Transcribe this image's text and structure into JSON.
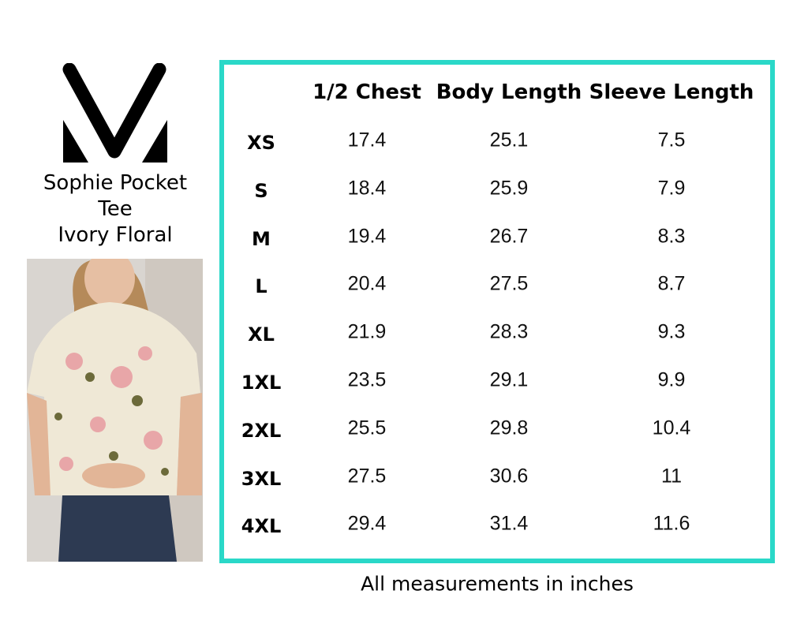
{
  "product": {
    "title_lines": [
      "Sophie Pocket",
      "Tee",
      "Ivory Floral"
    ]
  },
  "colors": {
    "frame": "#2ad8c8",
    "text": "#000000"
  },
  "table": {
    "columns": [
      "1/2 Chest",
      "Body Length",
      "Sleeve Length"
    ],
    "rows": [
      {
        "size": "XS",
        "values": [
          "17.4",
          "25.1",
          "7.5"
        ]
      },
      {
        "size": "S",
        "values": [
          "18.4",
          "25.9",
          "7.9"
        ]
      },
      {
        "size": "M",
        "values": [
          "19.4",
          "26.7",
          "8.3"
        ]
      },
      {
        "size": "L",
        "values": [
          "20.4",
          "27.5",
          "8.7"
        ]
      },
      {
        "size": "XL",
        "values": [
          "21.9",
          "28.3",
          "9.3"
        ]
      },
      {
        "size": "1XL",
        "values": [
          "23.5",
          "29.1",
          "9.9"
        ]
      },
      {
        "size": "2XL",
        "values": [
          "25.5",
          "29.8",
          "10.4"
        ]
      },
      {
        "size": "3XL",
        "values": [
          "27.5",
          "30.6",
          "11"
        ]
      },
      {
        "size": "4XL",
        "values": [
          "29.4",
          "31.4",
          "11.6"
        ]
      }
    ]
  },
  "footer": {
    "note": "All measurements in inches"
  }
}
